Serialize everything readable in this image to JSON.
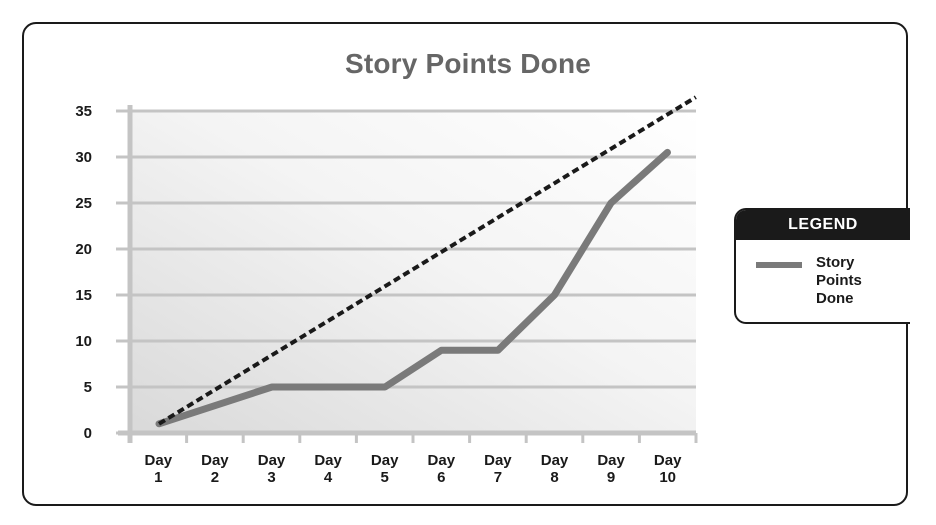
{
  "chart_data": {
    "type": "line",
    "title": "Story Points Done",
    "categories": [
      "Day 1",
      "Day 2",
      "Day 3",
      "Day 4",
      "Day 5",
      "Day 6",
      "Day 7",
      "Day 8",
      "Day 9",
      "Day 10"
    ],
    "x_tick_labels": [
      [
        "Day",
        "1"
      ],
      [
        "Day",
        "2"
      ],
      [
        "Day",
        "3"
      ],
      [
        "Day",
        "4"
      ],
      [
        "Day",
        "5"
      ],
      [
        "Day",
        "6"
      ],
      [
        "Day",
        "7"
      ],
      [
        "Day",
        "8"
      ],
      [
        "Day",
        "9"
      ],
      [
        "Day",
        "10"
      ]
    ],
    "y_ticks": [
      0,
      5,
      10,
      15,
      20,
      25,
      30,
      35
    ],
    "ylim": [
      0,
      35
    ],
    "grid": true,
    "series": [
      {
        "name": "Story Points Done",
        "color": "#7a7a7a",
        "style": "solid",
        "values": [
          1,
          3,
          5,
          5,
          5,
          9,
          9,
          15,
          25,
          30.5
        ]
      },
      {
        "color": "#1a1a1a",
        "style": "dashed",
        "x": [
          1,
          10.5
        ],
        "values": [
          1,
          36.5
        ]
      }
    ],
    "legend": {
      "title": "LEGEND",
      "placement": "right",
      "entries": [
        "Story Points Done"
      ]
    }
  },
  "colors": {
    "grid": "#c4c4c4",
    "axis": "#c4c4c4",
    "plot_bg_dark": "#e3e3e3",
    "plot_bg_light": "#ffffff"
  }
}
